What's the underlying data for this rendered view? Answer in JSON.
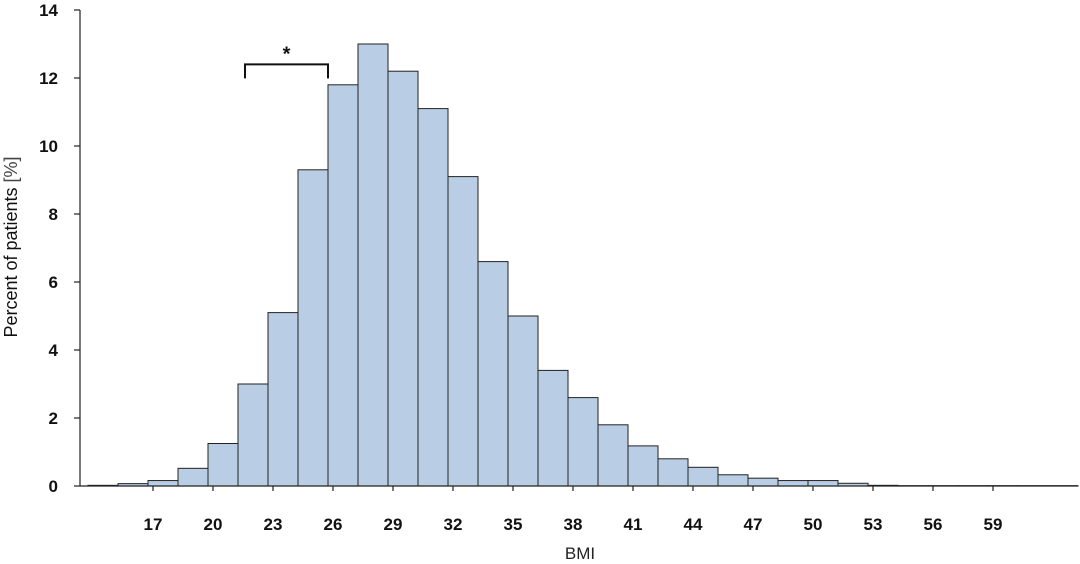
{
  "chart_data": {
    "type": "bar",
    "title": "",
    "xlabel": "BMI",
    "ylabel": "Percent of patients",
    "ylabel_unit": "[%]",
    "ylim": [
      0,
      14
    ],
    "xlim": [
      14,
      63
    ],
    "bin_width": 2,
    "yticks": [
      0,
      2,
      4,
      6,
      8,
      10,
      12,
      14
    ],
    "xticks": [
      17,
      20,
      23,
      26,
      29,
      32,
      35,
      38,
      41,
      44,
      47,
      50,
      53,
      56,
      59
    ],
    "bins": [
      {
        "start": 14,
        "value": 0.02
      },
      {
        "start": 15,
        "value": 0.07
      },
      {
        "start": 17,
        "value": 0.16
      },
      {
        "start": 18,
        "value": 0.52
      },
      {
        "start": 19,
        "value": 1.25
      },
      {
        "start": 21,
        "value": 3.0
      },
      {
        "start": 22,
        "value": 5.1
      },
      {
        "start": 24,
        "value": 9.3
      },
      {
        "start": 25,
        "value": 11.8
      },
      {
        "start": 27,
        "value": 13.0
      },
      {
        "start": 28,
        "value": 12.2
      },
      {
        "start": 30,
        "value": 11.1
      },
      {
        "start": 31,
        "value": 9.1
      },
      {
        "start": 33,
        "value": 6.6
      },
      {
        "start": 34,
        "value": 5.0
      },
      {
        "start": 36,
        "value": 3.4
      },
      {
        "start": 37,
        "value": 2.6
      },
      {
        "start": 39,
        "value": 1.8
      },
      {
        "start": 40,
        "value": 1.18
      },
      {
        "start": 42,
        "value": 0.8
      },
      {
        "start": 43,
        "value": 0.55
      },
      {
        "start": 45,
        "value": 0.33
      },
      {
        "start": 46,
        "value": 0.23
      },
      {
        "start": 48,
        "value": 0.16
      },
      {
        "start": 49,
        "value": 0.16
      },
      {
        "start": 51,
        "value": 0.08
      },
      {
        "start": 52,
        "value": 0.02
      },
      {
        "start": 54,
        "value": 0.01
      },
      {
        "start": 55,
        "value": 0.01
      },
      {
        "start": 57,
        "value": 0.01
      },
      {
        "start": 58,
        "value": 0.01
      },
      {
        "start": 60,
        "value": 0.01
      },
      {
        "start": 61,
        "value": 0.01
      }
    ],
    "annotations": [
      {
        "text": "*",
        "type": "bracket",
        "x_range": [
          21,
          25
        ],
        "y": 12.4
      }
    ],
    "grid": false,
    "legend": "none"
  }
}
